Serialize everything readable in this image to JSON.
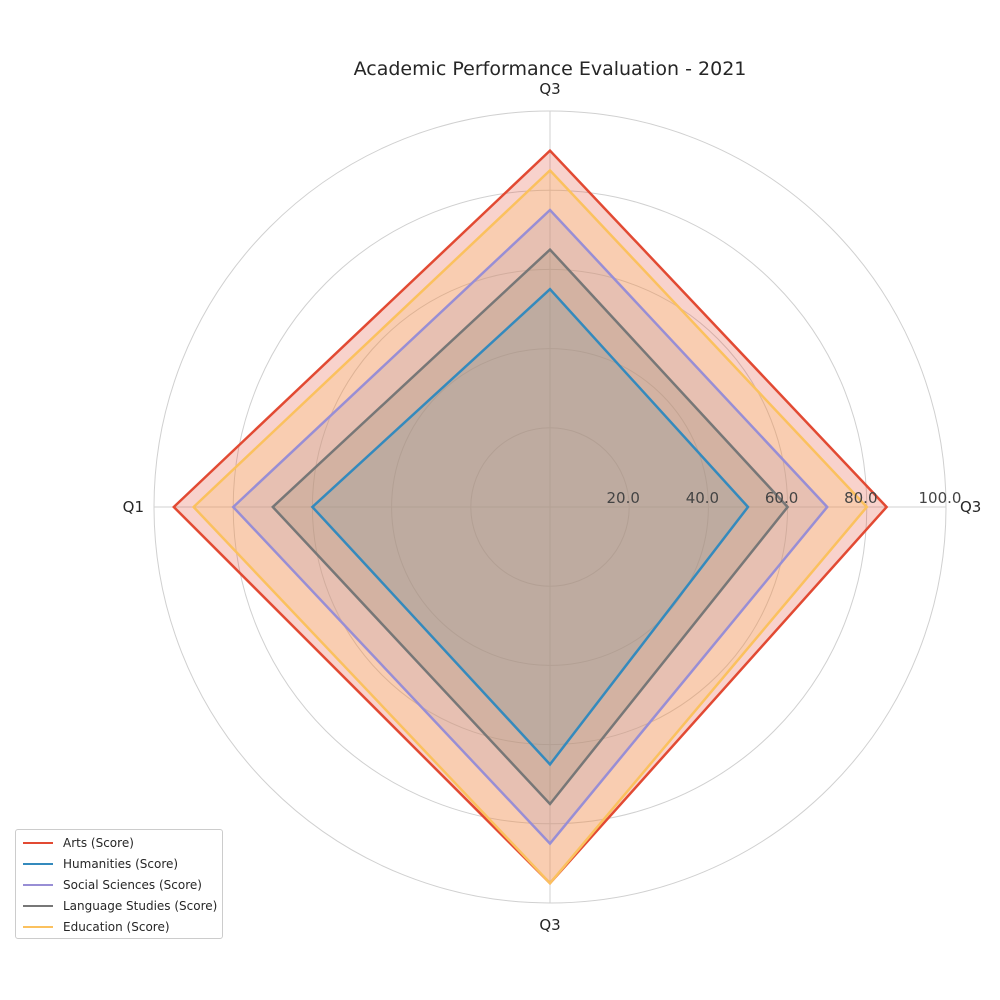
{
  "chart_data": {
    "type": "radar",
    "title": "Academic Performance Evaluation - 2021",
    "categories": [
      "Q3",
      "Q3",
      "Q3",
      "Q1"
    ],
    "rlim": [
      0,
      100
    ],
    "rticks": [
      "20.0",
      "40.0",
      "60.0",
      "80.0",
      "100.0"
    ],
    "grid": true,
    "legend_position": "lower-left",
    "series": [
      {
        "name": "Arts (Score)",
        "color": "#E24A33",
        "values": [
          85,
          90,
          95,
          95
        ]
      },
      {
        "name": "Humanities (Score)",
        "color": "#348ABD",
        "values": [
          50,
          55,
          65,
          60
        ]
      },
      {
        "name": "Social Sciences (Score)",
        "color": "#988ED5",
        "values": [
          70,
          75,
          85,
          80
        ]
      },
      {
        "name": "Language Studies (Score)",
        "color": "#777777",
        "values": [
          60,
          65,
          75,
          70
        ]
      },
      {
        "name": "Education (Score)",
        "color": "#FBC15E",
        "values": [
          80,
          85,
          95,
          90
        ]
      }
    ]
  }
}
